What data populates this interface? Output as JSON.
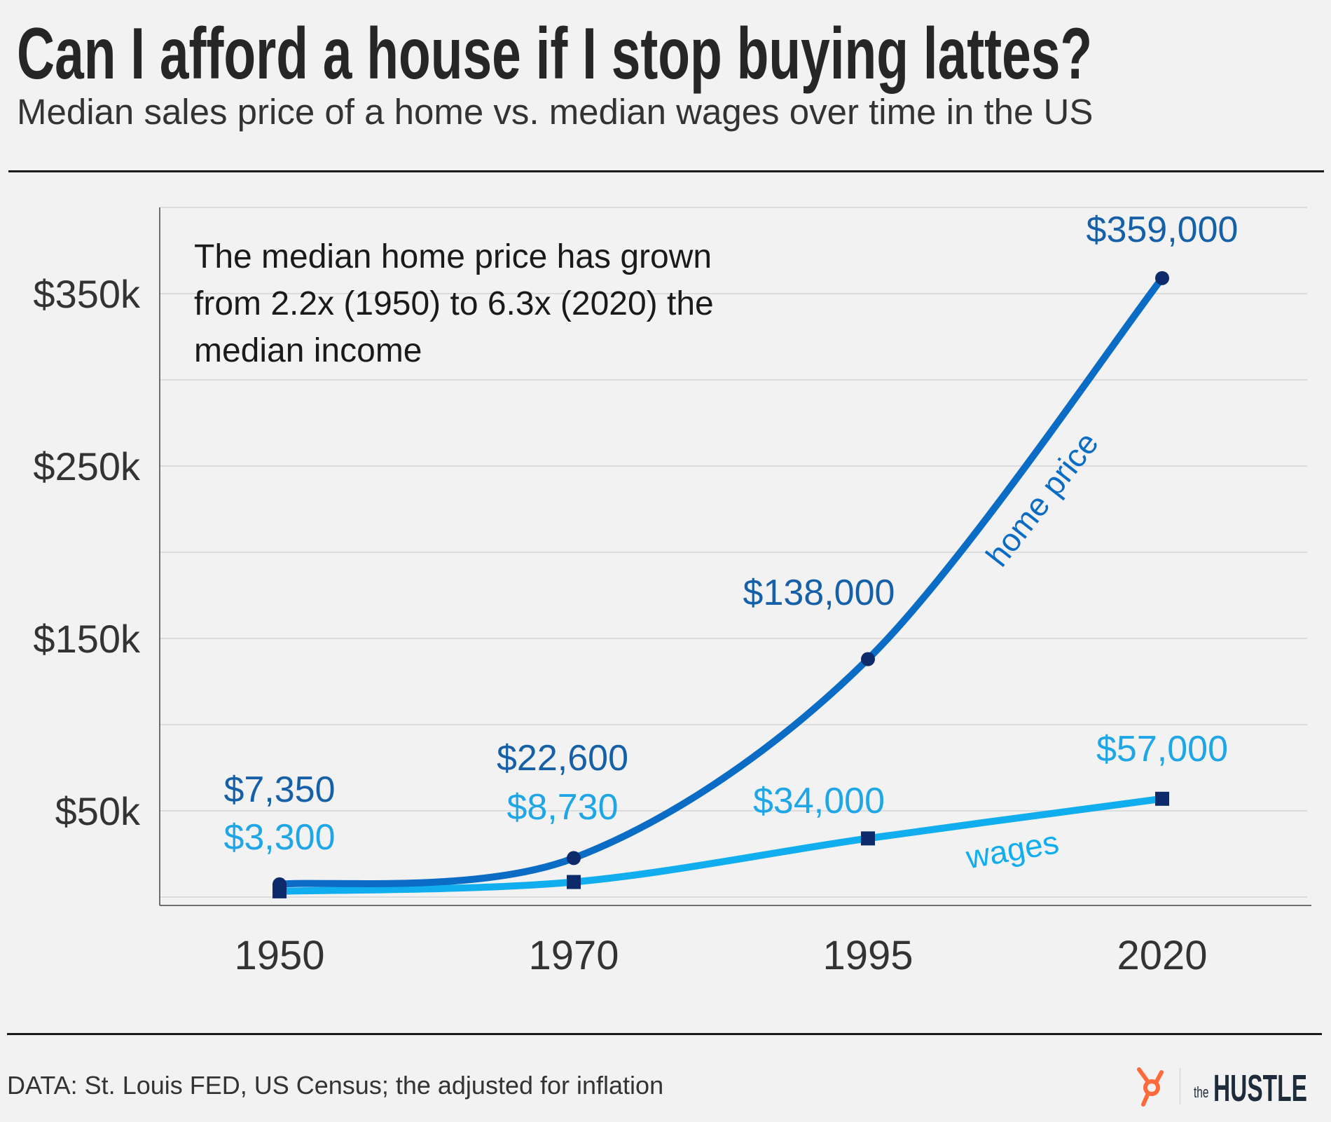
{
  "chart_data": {
    "type": "line",
    "title": "Can I afford a house if I stop buying lattes?",
    "subtitle": "Median sales price of a home vs. median wages over time in the US",
    "categories": [
      "1950",
      "1970",
      "1995",
      "2020"
    ],
    "series": [
      {
        "name": "home price",
        "values": [
          7350,
          22600,
          138000,
          359000
        ],
        "labels": [
          "$7,350",
          "$22,600",
          "$138,000",
          "$359,000"
        ],
        "color": "#0a6cc4",
        "label_color": "#1660a8",
        "marker": "circle"
      },
      {
        "name": "wages",
        "values": [
          3300,
          8730,
          34000,
          57000
        ],
        "labels": [
          "$3,300",
          "$8,730",
          "$34,000",
          "$57,000"
        ],
        "color": "#10aeee",
        "label_color": "#1fa6e6",
        "marker": "square"
      }
    ],
    "yticks": [
      50000,
      150000,
      250000,
      350000
    ],
    "ytick_labels": [
      "$50k",
      "$150k",
      "$250k",
      "$350k"
    ],
    "gridlines": [
      0,
      50000,
      100000,
      150000,
      200000,
      250000,
      300000,
      350000,
      400000
    ],
    "ylim": [
      0,
      400000
    ],
    "grid": true,
    "annotation": [
      "The median home price has grown",
      "from 2.2x (1950) to 6.3x (2020) the",
      "median income"
    ],
    "source": "DATA: St. Louis FED, US Census; the adjusted for inflation",
    "brand": {
      "the": "the",
      "name": "HUSTLE"
    },
    "marker_color": "#0d2a6b"
  }
}
